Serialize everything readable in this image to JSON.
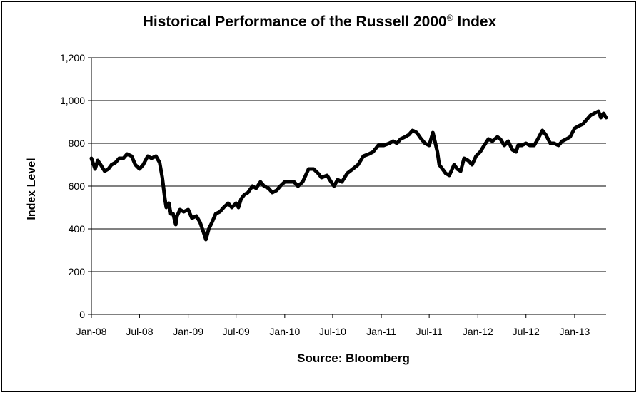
{
  "chart_data": {
    "type": "line",
    "title": "Historical Performance of the Russell 2000",
    "title_mark": "®",
    "title_suffix": "Index",
    "ylabel": "Index Level",
    "xlabel": "",
    "source": "Source: Bloomberg",
    "ylim": [
      0,
      1200
    ],
    "yticks": [
      "0",
      "200",
      "400",
      "600",
      "800",
      "1,000",
      "1,200"
    ],
    "xticks": [
      "Jan-08",
      "Jul-08",
      "Jan-09",
      "Jul-09",
      "Jan-10",
      "Jul-10",
      "Jan-11",
      "Jul-11",
      "Jan-12",
      "Jul-12",
      "Jan-13"
    ],
    "xlim": [
      "2008-01-01",
      "2013-04-30"
    ],
    "grid": "horizontal",
    "line_color": "#000000",
    "series": [
      {
        "x": [
          "2008-01-01",
          "2008-01-15",
          "2008-01-25",
          "2008-02-05",
          "2008-02-20",
          "2008-03-05",
          "2008-03-17",
          "2008-04-01",
          "2008-04-15",
          "2008-05-01",
          "2008-05-15",
          "2008-06-01",
          "2008-06-15",
          "2008-07-01",
          "2008-07-15",
          "2008-08-01",
          "2008-08-15",
          "2008-09-01",
          "2008-09-15",
          "2008-09-25",
          "2008-10-05",
          "2008-10-10",
          "2008-10-20",
          "2008-10-27",
          "2008-11-05",
          "2008-11-15",
          "2008-11-20",
          "2008-12-01",
          "2008-12-15",
          "2009-01-01",
          "2009-01-15",
          "2009-02-01",
          "2009-02-15",
          "2009-03-01",
          "2009-03-09",
          "2009-03-20",
          "2009-04-01",
          "2009-04-15",
          "2009-05-01",
          "2009-05-15",
          "2009-06-01",
          "2009-06-15",
          "2009-07-01",
          "2009-07-10",
          "2009-07-20",
          "2009-08-01",
          "2009-08-15",
          "2009-09-01",
          "2009-09-15",
          "2009-10-01",
          "2009-10-15",
          "2009-11-01",
          "2009-11-15",
          "2009-12-01",
          "2009-12-15",
          "2010-01-01",
          "2010-01-15",
          "2010-02-05",
          "2010-02-20",
          "2010-03-10",
          "2010-04-01",
          "2010-04-20",
          "2010-05-07",
          "2010-05-20",
          "2010-06-10",
          "2010-06-25",
          "2010-07-06",
          "2010-07-20",
          "2010-08-05",
          "2010-08-25",
          "2010-09-15",
          "2010-10-05",
          "2010-10-25",
          "2010-11-15",
          "2010-12-01",
          "2010-12-20",
          "2011-01-10",
          "2011-01-31",
          "2011-02-15",
          "2011-03-01",
          "2011-03-15",
          "2011-04-01",
          "2011-04-15",
          "2011-04-29",
          "2011-05-15",
          "2011-06-01",
          "2011-06-15",
          "2011-07-01",
          "2011-07-15",
          "2011-08-01",
          "2011-08-08",
          "2011-08-20",
          "2011-09-01",
          "2011-09-15",
          "2011-10-03",
          "2011-10-15",
          "2011-10-28",
          "2011-11-10",
          "2011-11-25",
          "2011-12-10",
          "2011-12-25",
          "2012-01-10",
          "2012-01-25",
          "2012-02-10",
          "2012-02-25",
          "2012-03-15",
          "2012-03-26",
          "2012-04-10",
          "2012-04-25",
          "2012-05-10",
          "2012-05-25",
          "2012-06-01",
          "2012-06-15",
          "2012-07-01",
          "2012-07-15",
          "2012-08-01",
          "2012-08-15",
          "2012-09-01",
          "2012-09-14",
          "2012-10-01",
          "2012-10-15",
          "2012-11-01",
          "2012-11-15",
          "2012-12-01",
          "2012-12-15",
          "2013-01-01",
          "2013-01-15",
          "2013-02-01",
          "2013-02-15",
          "2013-03-01",
          "2013-03-15",
          "2013-04-01",
          "2013-04-10",
          "2013-04-20",
          "2013-04-30"
        ],
        "values": [
          730,
          680,
          720,
          700,
          670,
          680,
          700,
          710,
          730,
          730,
          750,
          740,
          700,
          680,
          700,
          740,
          730,
          740,
          710,
          640,
          540,
          500,
          520,
          470,
          470,
          420,
          460,
          490,
          480,
          490,
          450,
          460,
          430,
          380,
          350,
          400,
          430,
          470,
          480,
          500,
          520,
          500,
          520,
          500,
          540,
          560,
          570,
          600,
          590,
          620,
          600,
          590,
          570,
          580,
          600,
          620,
          620,
          620,
          600,
          620,
          680,
          680,
          660,
          640,
          650,
          620,
          600,
          630,
          620,
          660,
          680,
          700,
          740,
          750,
          760,
          790,
          790,
          800,
          810,
          800,
          820,
          830,
          840,
          860,
          850,
          820,
          800,
          790,
          850,
          760,
          700,
          680,
          660,
          650,
          700,
          680,
          670,
          730,
          720,
          700,
          740,
          760,
          790,
          820,
          810,
          830,
          820,
          790,
          810,
          770,
          760,
          790,
          790,
          800,
          790,
          790,
          820,
          860,
          840,
          800,
          800,
          790,
          810,
          820,
          830,
          870,
          880,
          890,
          910,
          930,
          940,
          950,
          920,
          940,
          920
        ]
      }
    ]
  }
}
